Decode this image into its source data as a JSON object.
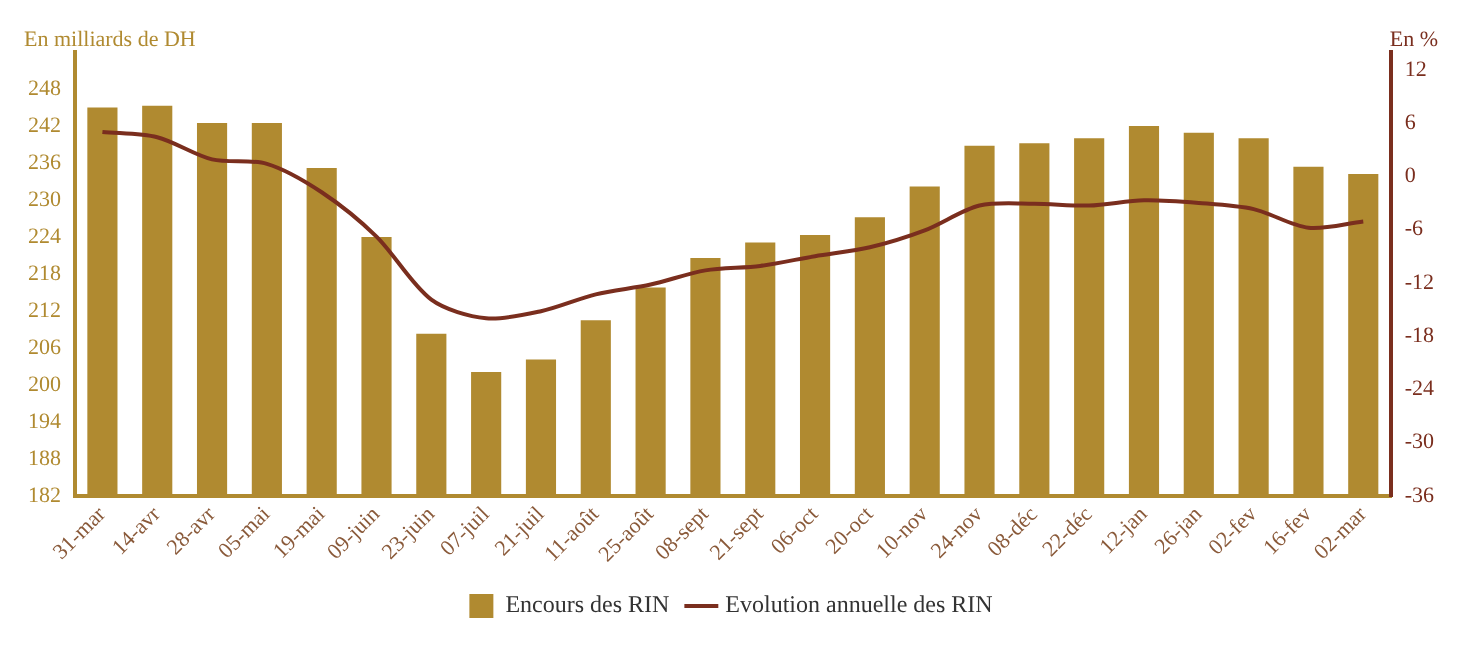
{
  "chart_data": {
    "type": "bar",
    "ylabel": "En milliards de DH",
    "y2label": "En %",
    "categories": [
      "31-mar",
      "14-avr",
      "28-avr",
      "05-mai",
      "19-mai",
      "09-juin",
      "23-juin",
      "07-juil",
      "21-juil",
      "11-août",
      "25-août",
      "08-sept",
      "21-sept",
      "06-oct",
      "20-oct",
      "10-nov",
      "24-nov",
      "08-déc",
      "22-déc",
      "12-jan",
      "26-jan",
      "02-fev",
      "16-fev",
      "02-mar"
    ],
    "series": [
      {
        "name": "Encours des RIN",
        "color": "#b08a30",
        "values": [
          245,
          245.3,
          242.5,
          242.5,
          235.2,
          224,
          208.3,
          202.1,
          204.1,
          210.5,
          215.8,
          220.6,
          223.1,
          224.3,
          227.2,
          232.2,
          238.8,
          239.2,
          240,
          242,
          240.9,
          240,
          235.4,
          234.2
        ]
      },
      {
        "name": "Evolution annuelle des RIN",
        "type": "line",
        "axis": "y2",
        "color": "#7a2e1e",
        "values": [
          5.0,
          4.4,
          1.9,
          1.4,
          -1.8,
          -6.8,
          -13.9,
          -16.0,
          -15.2,
          -13.3,
          -12.2,
          -10.6,
          -10.1,
          -9.0,
          -8.0,
          -6.1,
          -3.3,
          -3.1,
          -3.3,
          -2.7,
          -3.0,
          -3.7,
          -5.8,
          -5.1
        ]
      }
    ],
    "ylim": [
      182,
      254
    ],
    "yticks": [
      182,
      188,
      194,
      200,
      206,
      212,
      218,
      224,
      230,
      236,
      242,
      248
    ],
    "y2lim": [
      -36,
      14
    ],
    "y2ticks": [
      -36,
      -30,
      -24,
      -18,
      -12,
      -6,
      0,
      6,
      12
    ],
    "grid": false,
    "legend": "bottom"
  }
}
